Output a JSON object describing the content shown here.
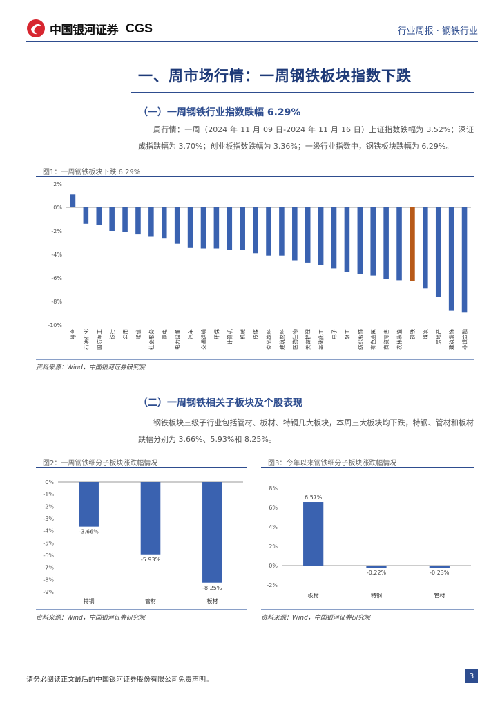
{
  "header": {
    "brand_cn": "中国银河证券",
    "brand_en": "CGS",
    "report_tag": "行业周报 · 钢铁行业"
  },
  "section": {
    "title": "一、周市场行情：一周钢铁板块指数下跌"
  },
  "sub1": {
    "title": "（一）一周钢铁行业指数跌幅 6.29%",
    "text": "周行情：一周（2024 年 11 月 09 日-2024 年 11 月 16 日）上证指数跌幅为 3.52%；深证成指跌幅为 3.70%；创业板指数跌幅为 3.36%；一级行业指数中，钢铁板块跌幅为 6.29%。"
  },
  "fig1": {
    "title": "图1：一周钢铁板块下跌 6.29%",
    "source": "资料来源：Wind，中国银河证券研究院"
  },
  "sub2": {
    "title": "（二）一周钢铁相关子板块及个股表现",
    "text": "钢铁板块三级子行业包括管材、板材、特钢几大板块，本周三大板块均下跌，特钢、管材和板材跌幅分别为 3.66%、5.93%和 8.25%。"
  },
  "fig2": {
    "title": "图2：一周钢铁细分子板块涨跌幅情况",
    "source": "资料来源：Wind，中国银河证券研究院"
  },
  "fig3": {
    "title": "图3：今年以来钢铁细分子板块涨跌幅情况",
    "source": "资料来源：Wind，中国银河证券研究院"
  },
  "footer": {
    "text": "请务必阅读正文最后的中国银河证券股份有限公司免责声明。",
    "page": "3"
  },
  "colors": {
    "bar": "#3a62b0",
    "highlight": "#b85a18",
    "accent": "#2e4d8f"
  },
  "chart_data": [
    {
      "type": "bar",
      "title": "一周钢铁板块下跌 6.29%",
      "categories": [
        "综合",
        "石油石化",
        "国防军工",
        "银行",
        "公用",
        "通信",
        "社会服务",
        "家电",
        "电力设备",
        "汽车",
        "交通运输",
        "环保",
        "计算机",
        "机械",
        "传媒",
        "食品饮料",
        "建筑材料",
        "医药生物",
        "美容护理",
        "基础化工",
        "电子",
        "轻工",
        "纺织服饰",
        "有色金属",
        "商贸零售",
        "农林牧渔",
        "钢铁",
        "煤炭",
        "房地产",
        "建筑装饰",
        "非银金融"
      ],
      "values": [
        1.1,
        -1.4,
        -1.5,
        -2.0,
        -2.1,
        -2.3,
        -2.5,
        -2.6,
        -3.1,
        -3.4,
        -3.5,
        -3.5,
        -3.6,
        -3.6,
        -3.9,
        -4.1,
        -4.1,
        -4.5,
        -4.7,
        -4.9,
        -5.2,
        -5.5,
        -5.7,
        -5.8,
        -6.1,
        -6.2,
        -6.29,
        -6.9,
        -7.6,
        -8.8,
        -8.9
      ],
      "highlight_category": "钢铁",
      "y_ticks": [
        "2%",
        "0%",
        "-2%",
        "-4%",
        "-6%",
        "-8%",
        "-10%"
      ],
      "ylim": [
        -10,
        2
      ]
    },
    {
      "type": "bar",
      "title": "一周钢铁细分子板块涨跌幅情况",
      "categories": [
        "特钢",
        "管材",
        "板材"
      ],
      "values": [
        -3.66,
        -5.93,
        -8.25
      ],
      "data_labels": [
        "-3.66%",
        "-5.93%",
        "-8.25%"
      ],
      "y_ticks": [
        "0%",
        "-1%",
        "-2%",
        "-3%",
        "-4%",
        "-5%",
        "-6%",
        "-7%",
        "-8%",
        "-9%"
      ],
      "ylim": [
        -9,
        0
      ]
    },
    {
      "type": "bar",
      "title": "今年以来钢铁细分子板块涨跌幅情况",
      "categories": [
        "板材",
        "特钢",
        "管材"
      ],
      "values": [
        6.57,
        -0.22,
        -0.23
      ],
      "data_labels": [
        "6.57%",
        "-0.22%",
        "-0.23%"
      ],
      "y_ticks": [
        "8%",
        "6%",
        "4%",
        "2%",
        "0%",
        "-2%"
      ],
      "ylim": [
        -2,
        8
      ]
    }
  ]
}
